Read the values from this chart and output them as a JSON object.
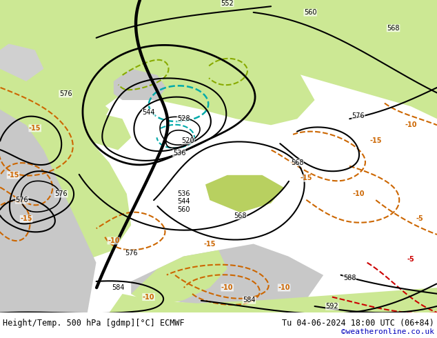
{
  "title_left": "Height/Temp. 500 hPa [gdmp][°C] ECMWF",
  "title_right": "Tu 04-06-2024 18:00 UTC (06+84)",
  "credit": "©weatheronline.co.uk",
  "contour_color": "#000000",
  "temp_orange_color": "#cc6600",
  "temp_red_color": "#cc0000",
  "temp_cyan_color": "#00aaaa",
  "temp_green_color": "#88aa00",
  "sea_color": "#c8c8c8",
  "land_color": "#cce894",
  "land_color2": "#b8d870",
  "figsize": [
    6.34,
    4.9
  ],
  "dpi": 100
}
